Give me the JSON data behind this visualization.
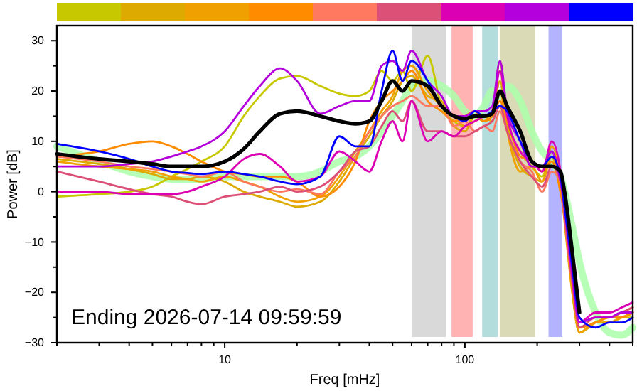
{
  "chart_data": {
    "type": "line",
    "xlabel": "Freq [mHz]",
    "ylabel": "Power [dB]",
    "annotations": [
      "Ending 2026-07-14 09:59:59"
    ],
    "log": "x",
    "grid": false,
    "marker": "none",
    "line_style": "solid",
    "xlim": [
      2,
      500
    ],
    "ylim": [
      -30,
      33
    ],
    "xticks": [
      {
        "value": 2,
        "label": null
      },
      {
        "value": 3,
        "label": null
      },
      {
        "value": 4,
        "label": null
      },
      {
        "value": 5,
        "label": null
      },
      {
        "value": 6,
        "label": null
      },
      {
        "value": 7,
        "label": null
      },
      {
        "value": 8,
        "label": null
      },
      {
        "value": 9,
        "label": null
      },
      10,
      {
        "value": 20,
        "label": null
      },
      {
        "value": 30,
        "label": null
      },
      {
        "value": 40,
        "label": null
      },
      {
        "value": 50,
        "label": null
      },
      {
        "value": 60,
        "label": null
      },
      {
        "value": 70,
        "label": null
      },
      {
        "value": 80,
        "label": null
      },
      {
        "value": 90,
        "label": null
      },
      100,
      {
        "value": 200,
        "label": null
      },
      {
        "value": 300,
        "label": null
      },
      {
        "value": 400,
        "label": null
      },
      {
        "value": 500,
        "label": null
      }
    ],
    "yticks": [
      -30,
      {
        "value": -25,
        "label": null
      },
      -20,
      {
        "value": -15,
        "label": null
      },
      -10,
      {
        "value": -5,
        "label": null
      },
      0,
      {
        "value": 5,
        "label": null
      },
      10,
      {
        "value": 15,
        "label": null
      },
      20,
      {
        "value": 25,
        "label": null
      },
      30
    ],
    "bands": [
      {
        "axis": "x",
        "from": 60,
        "to": 85,
        "color": "#d9d9d9"
      },
      {
        "axis": "x",
        "from": 88,
        "to": 110,
        "color": "#ffb3b3"
      },
      {
        "axis": "x",
        "from": 118,
        "to": 140,
        "color": "#b3dcdc"
      },
      {
        "axis": "x",
        "from": 140,
        "to": 200,
        "color": "#dadab6"
      },
      {
        "axis": "x",
        "from": 223,
        "to": 260,
        "color": "#b3b3ff"
      }
    ],
    "x": [
      2,
      3,
      4,
      5,
      6,
      7,
      8,
      10,
      12,
      14,
      17,
      20,
      25,
      30,
      35,
      40,
      45,
      50,
      55,
      60,
      70,
      80,
      90,
      100,
      110,
      120,
      130,
      140,
      150,
      170,
      190,
      210,
      230,
      250,
      260,
      280,
      300,
      350,
      400,
      450,
      500
    ],
    "series": [
      {
        "color": "#aaffaa",
        "values": [
          9,
          6,
          4,
          3,
          2.5,
          2.5,
          2.5,
          3,
          3,
          3,
          3,
          3,
          4,
          6,
          7,
          9,
          12,
          15,
          18,
          21,
          22,
          21,
          19,
          16,
          15,
          17,
          20,
          19,
          21,
          18,
          12,
          8,
          6,
          3,
          0,
          -7,
          -14,
          -24,
          -28,
          -28.5,
          -27
        ]
      },
      {
        "color": "#c8c800",
        "values": [
          -1,
          -0.5,
          0,
          1,
          3,
          4.5,
          6,
          9,
          15,
          19,
          22.5,
          23,
          21,
          19.5,
          19,
          20,
          24,
          22,
          24,
          20,
          27,
          17,
          14,
          13,
          15,
          14,
          16,
          26,
          14,
          8,
          5,
          3,
          8,
          1,
          -5,
          -20,
          -28,
          -26,
          -26,
          -25,
          -25
        ]
      },
      {
        "color": "#dcaa00",
        "values": [
          6.5,
          5.5,
          4.5,
          3.5,
          2.5,
          2.5,
          3,
          2,
          0,
          -1,
          -2,
          -3,
          -2,
          2,
          7,
          11,
          15,
          18,
          22,
          23,
          19,
          18,
          13,
          12,
          15,
          14,
          15,
          22,
          13,
          5,
          3,
          2,
          7,
          0,
          -4,
          -19,
          -28,
          -26,
          -25,
          -25,
          -24
        ]
      },
      {
        "color": "#f0a000",
        "values": [
          6,
          5,
          4.5,
          4,
          3,
          2.5,
          2,
          3,
          2,
          1,
          -1,
          -2,
          -1,
          3,
          8,
          12,
          16,
          19,
          24,
          25,
          20,
          17,
          15,
          13,
          14,
          15,
          14,
          20,
          12,
          4,
          5,
          2,
          9,
          2,
          -6,
          -20,
          -28,
          -26,
          -26,
          -25,
          -24
        ]
      },
      {
        "color": "#ff8c00",
        "values": [
          7,
          8,
          9.5,
          10,
          9,
          7.5,
          6,
          4,
          3.5,
          3,
          3,
          2,
          -1,
          1,
          6,
          14,
          18,
          20,
          22,
          24,
          18,
          16,
          14,
          15,
          16,
          14,
          15,
          18,
          14,
          7,
          6,
          4,
          6,
          0,
          -5,
          -18,
          -27,
          -26,
          -25,
          -25,
          -24
        ]
      },
      {
        "color": "#ff7860",
        "values": [
          7,
          6,
          5,
          4.5,
          4,
          3.5,
          3,
          4,
          2,
          1,
          0,
          0.5,
          -0.5,
          4,
          7,
          12,
          15,
          17,
          18,
          19,
          17,
          17,
          13,
          14,
          12,
          13,
          12,
          16,
          12,
          6,
          4,
          0,
          4,
          2,
          -5,
          -18,
          -26,
          -25,
          -25,
          -24,
          -23
        ]
      },
      {
        "color": "#dc5078",
        "values": [
          4,
          2,
          0.5,
          -0.5,
          -1,
          -2,
          -2.5,
          -1,
          -0.5,
          0,
          1,
          0,
          1,
          4,
          8,
          9,
          13,
          16,
          14,
          18,
          12,
          12,
          11,
          11,
          12,
          13,
          14,
          17,
          12,
          6,
          3,
          1,
          5,
          2,
          -5,
          -18,
          -27,
          -25,
          -25,
          -24,
          -23
        ]
      },
      {
        "color": "#dc00b4",
        "values": [
          0,
          0,
          -0.5,
          -0.5,
          -0.5,
          0,
          1,
          3,
          6.5,
          7.5,
          5,
          2,
          3,
          8,
          6,
          4,
          10,
          14,
          10,
          18,
          10,
          12,
          11,
          13,
          14,
          15,
          16,
          24,
          15,
          8,
          6,
          4,
          10,
          4,
          -3,
          -17,
          -26,
          -24,
          -24,
          -23,
          -22
        ]
      },
      {
        "color": "#b400dc",
        "values": [
          5,
          5,
          5.5,
          6,
          7,
          8,
          9,
          12,
          17,
          21,
          24.5,
          22,
          15.5,
          17,
          18,
          18,
          25,
          26,
          24,
          28,
          22,
          19,
          15,
          15,
          16,
          16,
          17,
          26,
          16,
          10,
          5,
          5,
          8,
          2,
          -3,
          -16,
          -26,
          -25,
          -25,
          -24,
          -24
        ]
      },
      {
        "color": "#0000ff",
        "values": [
          9.5,
          8,
          6.5,
          5,
          4,
          3.7,
          3.5,
          4,
          3.5,
          3,
          2,
          1.5,
          3,
          11,
          9,
          9,
          20,
          28,
          22,
          26,
          22,
          17,
          15,
          14,
          16,
          15,
          16,
          17,
          16,
          10,
          6,
          5,
          7,
          3,
          -3,
          -15,
          -25,
          -27,
          -26,
          -26,
          -25
        ]
      },
      {
        "color": "#000000",
        "values": [
          7.5,
          6.5,
          6,
          5.5,
          5,
          5,
          5,
          6,
          8.5,
          12,
          15.5,
          16,
          15,
          14,
          13.5,
          14,
          18,
          22,
          20,
          22,
          21,
          17,
          15,
          14.5,
          15,
          15,
          15.5,
          20,
          17,
          12,
          6,
          5,
          5,
          4,
          0,
          -12,
          -24,
          null,
          null,
          null,
          null
        ]
      }
    ]
  }
}
